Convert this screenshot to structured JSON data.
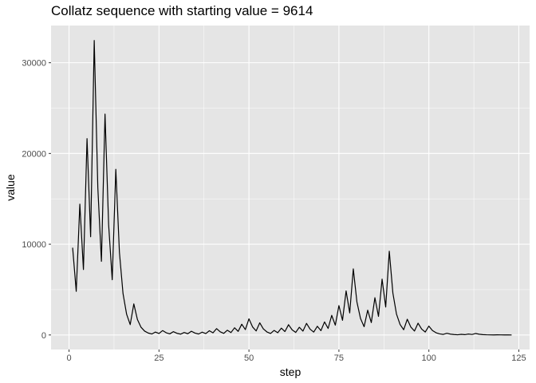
{
  "chart_data": {
    "type": "line",
    "title": "Collatz sequence with starting value = 9614",
    "xlabel": "step",
    "ylabel": "value",
    "xlim": [
      -5,
      128
    ],
    "ylim": [
      -1600,
      34100
    ],
    "x_ticks": [
      0,
      25,
      50,
      75,
      100,
      125
    ],
    "x_tick_labels": [
      "0",
      "25",
      "50",
      "75",
      "100",
      "125"
    ],
    "y_ticks": [
      0,
      10000,
      20000,
      30000
    ],
    "y_tick_labels": [
      "0",
      "10000",
      "20000",
      "30000"
    ],
    "grid": true,
    "legend": "none",
    "colors": {
      "panel": "#e5e5e5",
      "grid": "#ffffff",
      "line": "#000000",
      "text": "#4d4d4d"
    },
    "series": [
      {
        "start_step": 1,
        "values": [
          9614,
          4807,
          14422,
          7211,
          21634,
          10817,
          32452,
          16226,
          8113,
          24340,
          12170,
          6085,
          18256,
          9128,
          4564,
          2282,
          1141,
          3424,
          1712,
          856,
          428,
          214,
          107,
          322,
          161,
          484,
          242,
          121,
          364,
          182,
          91,
          274,
          137,
          412,
          206,
          103,
          310,
          155,
          466,
          233,
          700,
          350,
          175,
          526,
          263,
          790,
          395,
          1186,
          593,
          1780,
          890,
          445,
          1336,
          668,
          334,
          167,
          502,
          251,
          754,
          377,
          1132,
          566,
          283,
          850,
          425,
          1276,
          638,
          319,
          958,
          479,
          1438,
          719,
          2158,
          1079,
          3238,
          1619,
          4858,
          2429,
          7288,
          3644,
          1822,
          911,
          2734,
          1367,
          4102,
          2051,
          6154,
          3077,
          9232,
          4616,
          2308,
          1154,
          577,
          1732,
          866,
          433,
          1300,
          650,
          325,
          976,
          488,
          244,
          122,
          61,
          184,
          92,
          46,
          23,
          70,
          35,
          106,
          53,
          160,
          80,
          40,
          20,
          10,
          5,
          16,
          8,
          4,
          2,
          1
        ]
      }
    ]
  }
}
